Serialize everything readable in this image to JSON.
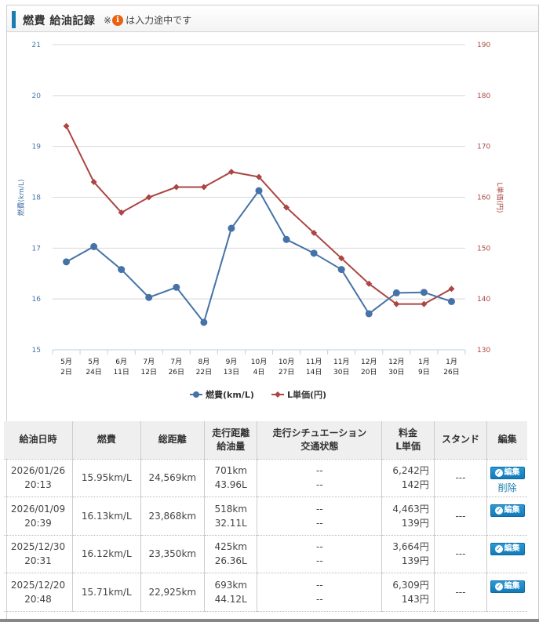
{
  "header": {
    "title": "燃費 給油記録",
    "note_prefix": "※",
    "info_icon": "i",
    "note_suffix": "は入力途中です"
  },
  "colors": {
    "accent": "#1a7cb0",
    "fuel_series": "#4572a7",
    "price_series": "#aa4643",
    "info_icon": "#e8620f"
  },
  "chart_data": {
    "type": "line",
    "categories": [
      "5月\n2日",
      "5月\n24日",
      "6月\n11日",
      "7月\n12日",
      "7月\n26日",
      "8月\n22日",
      "9月\n13日",
      "10月\n4日",
      "10月\n27日",
      "11月\n14日",
      "11月\n30日",
      "12月\n20日",
      "12月\n30日",
      "1月\n9日",
      "1月\n26日"
    ],
    "category_lines": [
      [
        "5月",
        "2日"
      ],
      [
        "5月",
        "24日"
      ],
      [
        "6月",
        "11日"
      ],
      [
        "7月",
        "12日"
      ],
      [
        "7月",
        "26日"
      ],
      [
        "8月",
        "22日"
      ],
      [
        "9月",
        "13日"
      ],
      [
        "10月",
        "4日"
      ],
      [
        "10月",
        "27日"
      ],
      [
        "11月",
        "14日"
      ],
      [
        "11月",
        "30日"
      ],
      [
        "12月",
        "20日"
      ],
      [
        "12月",
        "30日"
      ],
      [
        "1月",
        "9日"
      ],
      [
        "1月",
        "26日"
      ]
    ],
    "series": [
      {
        "name": "燃費(km/L)",
        "axis": "left",
        "marker": "circle",
        "values": [
          16.73,
          17.03,
          16.58,
          16.03,
          16.23,
          15.54,
          17.39,
          18.13,
          17.17,
          16.9,
          16.58,
          15.71,
          16.12,
          16.13,
          15.95
        ]
      },
      {
        "name": "L単価(円)",
        "axis": "right",
        "marker": "diamond",
        "values": [
          174,
          163,
          157,
          160,
          162,
          162,
          165,
          164,
          158,
          153,
          148,
          143,
          139,
          139,
          142
        ]
      }
    ],
    "y_left": {
      "label": "燃費(km/L)",
      "range": [
        15,
        21
      ],
      "ticks": [
        "15",
        "16",
        "17",
        "18",
        "19",
        "20",
        "21"
      ]
    },
    "y_right": {
      "label": "L単価(円)",
      "range": [
        130,
        190
      ],
      "ticks": [
        "130",
        "140",
        "150",
        "160",
        "170",
        "180",
        "190"
      ]
    },
    "grid": true,
    "legend": "bottom-center"
  },
  "table": {
    "headers": [
      {
        "line1": "給油日時",
        "line2": ""
      },
      {
        "line1": "燃費",
        "line2": ""
      },
      {
        "line1": "総距離",
        "line2": ""
      },
      {
        "line1": "走行距離",
        "line2": "給油量"
      },
      {
        "line1": "走行シチュエーション",
        "line2": "交通状態"
      },
      {
        "line1": "料金",
        "line2": "L単価"
      },
      {
        "line1": "スタンド",
        "line2": ""
      },
      {
        "line1": "編集",
        "line2": ""
      }
    ],
    "rows": [
      {
        "date": "2026/01/26",
        "time": "20:13",
        "economy": "15.95km/L",
        "total": "24,569km",
        "distance": "701km",
        "amount": "43.96L",
        "situation": "--",
        "traffic": "--",
        "cost": "6,242円",
        "unit_price": "142円",
        "stand": "---",
        "edit": "編集",
        "delete": "削除"
      },
      {
        "date": "2026/01/09",
        "time": "20:39",
        "economy": "16.13km/L",
        "total": "23,868km",
        "distance": "518km",
        "amount": "32.11L",
        "situation": "--",
        "traffic": "--",
        "cost": "4,463円",
        "unit_price": "139円",
        "stand": "---",
        "edit": "編集"
      },
      {
        "date": "2025/12/30",
        "time": "20:31",
        "economy": "16.12km/L",
        "total": "23,350km",
        "distance": "425km",
        "amount": "26.36L",
        "situation": "--",
        "traffic": "--",
        "cost": "3,664円",
        "unit_price": "139円",
        "stand": "---",
        "edit": "編集"
      },
      {
        "date": "2025/12/20",
        "time": "20:48",
        "economy": "15.71km/L",
        "total": "22,925km",
        "distance": "693km",
        "amount": "44.12L",
        "situation": "--",
        "traffic": "--",
        "cost": "6,309円",
        "unit_price": "143円",
        "stand": "---",
        "edit": "編集"
      }
    ]
  }
}
